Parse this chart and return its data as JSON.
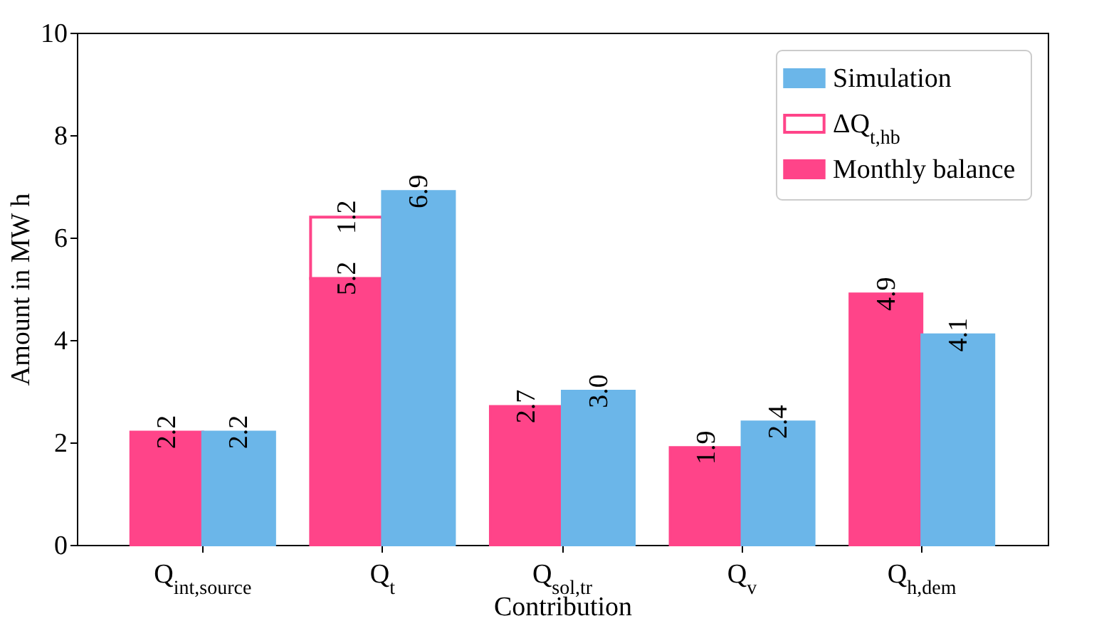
{
  "chart_data": {
    "type": "bar",
    "xlabel": "Contribution",
    "ylabel": "Amount in MW h",
    "categories": [
      "Q$_{int,source}$",
      "Q$_{t}$",
      "Q$_{sol,tr}$",
      "Q$_{v}$",
      "Q$_{h,dem}$"
    ],
    "series": [
      {
        "name": "Monthly balance",
        "color": "#ff4489",
        "values": [
          2.2,
          5.2,
          2.7,
          1.9,
          4.9
        ]
      },
      {
        "name": "ΔQ$_{t,hb}$",
        "color": "#ff4489",
        "values": [
          null,
          1.2,
          null,
          null,
          null
        ],
        "base": [
          null,
          5.2,
          null,
          null,
          null
        ]
      },
      {
        "name": "Simulation",
        "color": "#6bb6e9",
        "values": [
          2.2,
          6.9,
          3.0,
          2.4,
          4.1
        ],
        "value_labels": [
          "2.2",
          "6.9",
          "3.0",
          "2.4",
          "4.1"
        ]
      }
    ],
    "ylim": [
      0,
      10
    ],
    "yticks": [
      0,
      2,
      4,
      6,
      8,
      10
    ],
    "grid": false,
    "legend": "top right",
    "data_labels": true
  }
}
